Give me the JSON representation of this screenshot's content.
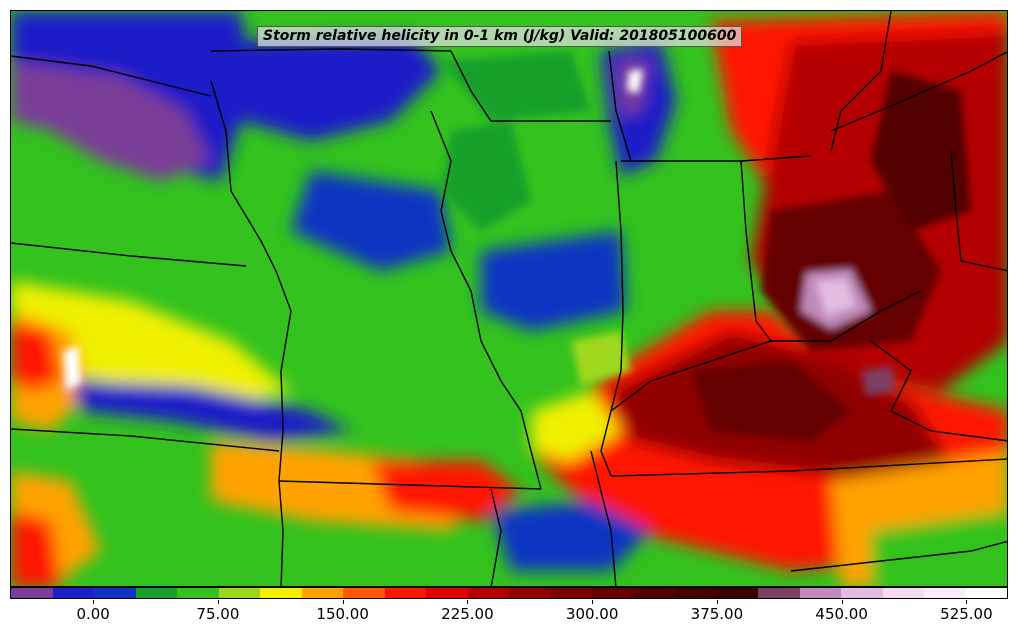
{
  "title": "Storm relative helicity in 0-1 km (J/kg) Valid: 201805100600",
  "colorbar": {
    "levels": [
      -50,
      -25,
      0,
      25,
      50,
      75,
      100,
      125,
      150,
      175,
      200,
      225,
      250,
      275,
      300,
      325,
      350,
      375,
      400,
      425,
      450,
      475,
      500,
      525,
      550
    ],
    "colors": [
      "#7a3d97",
      "#1d1fc8",
      "#0d35c2",
      "#15a02c",
      "#33c21e",
      "#9fd81a",
      "#f0f000",
      "#ffa200",
      "#ff5a00",
      "#ff1500",
      "#e00000",
      "#b40000",
      "#900000",
      "#7a0000",
      "#650000",
      "#520000",
      "#440000",
      "#3a0000",
      "#7d3f63",
      "#c08aba",
      "#e2bde0",
      "#f4ddf1",
      "#fbeefa",
      "#ffffff"
    ],
    "tick_labels": [
      "0.00",
      "75.00",
      "150.00",
      "225.00",
      "300.00",
      "375.00",
      "450.00",
      "525.00"
    ],
    "tick_values": [
      0,
      75,
      150,
      225,
      300,
      375,
      450,
      525
    ]
  }
}
